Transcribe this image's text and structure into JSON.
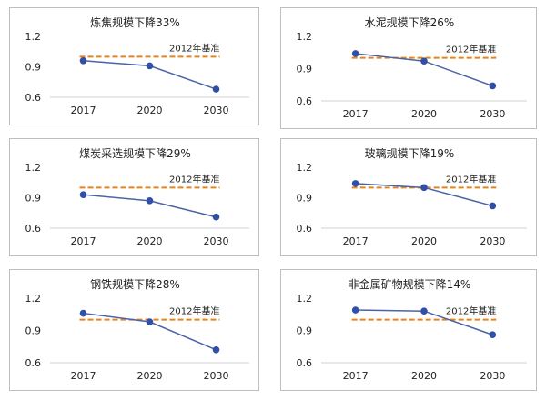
{
  "colors": {
    "line": "#4a63a8",
    "marker": "#2f4fa8",
    "baseline": "#e8831a",
    "axis": "#d0d0d0",
    "text": "#222222",
    "border": "#bfbfbf"
  },
  "chart_data": [
    {
      "type": "line",
      "title": "炼焦规模下降33%",
      "categories": [
        "2017",
        "2020",
        "2030"
      ],
      "values": [
        0.96,
        0.91,
        0.68
      ],
      "baseline": {
        "value": 1.0,
        "label": "2012年基准"
      },
      "yticks": [
        "1.2",
        "0.9",
        "0.6"
      ],
      "ylim": [
        0.6,
        1.2
      ],
      "grid": false
    },
    {
      "type": "line",
      "title": "水泥规模下降26%",
      "categories": [
        "2017",
        "2020",
        "2030"
      ],
      "values": [
        1.04,
        0.97,
        0.74
      ],
      "baseline": {
        "value": 1.0,
        "label": "2012年基准"
      },
      "yticks": [
        "1.2",
        "0.9",
        "0.6"
      ],
      "ylim": [
        0.6,
        1.2
      ],
      "grid": false
    },
    {
      "type": "line",
      "title": "煤炭采选规模下降29%",
      "categories": [
        "2017",
        "2020",
        "2030"
      ],
      "values": [
        0.93,
        0.87,
        0.71
      ],
      "baseline": {
        "value": 1.0,
        "label": "2012年基准"
      },
      "yticks": [
        "1.2",
        "0.9",
        "0.6"
      ],
      "ylim": [
        0.6,
        1.2
      ],
      "grid": false
    },
    {
      "type": "line",
      "title": "玻璃规模下降19%",
      "categories": [
        "2017",
        "2020",
        "2030"
      ],
      "values": [
        1.04,
        1.0,
        0.82
      ],
      "baseline": {
        "value": 1.0,
        "label": "2012年基准"
      },
      "yticks": [
        "1.2",
        "0.9",
        "0.6"
      ],
      "ylim": [
        0.6,
        1.2
      ],
      "grid": false
    },
    {
      "type": "line",
      "title": "钢铁规模下降28%",
      "categories": [
        "2017",
        "2020",
        "2030"
      ],
      "values": [
        1.06,
        0.98,
        0.72
      ],
      "baseline": {
        "value": 1.0,
        "label": "2012年基准"
      },
      "yticks": [
        "1.2",
        "0.9",
        "0.6"
      ],
      "ylim": [
        0.6,
        1.2
      ],
      "grid": false
    },
    {
      "type": "line",
      "title": "非金属矿物规模下降14%",
      "categories": [
        "2017",
        "2020",
        "2030"
      ],
      "values": [
        1.09,
        1.08,
        0.86
      ],
      "baseline": {
        "value": 1.0,
        "label": "2012年基准"
      },
      "yticks": [
        "1.2",
        "0.9",
        "0.6"
      ],
      "ylim": [
        0.6,
        1.2
      ],
      "grid": false
    }
  ]
}
